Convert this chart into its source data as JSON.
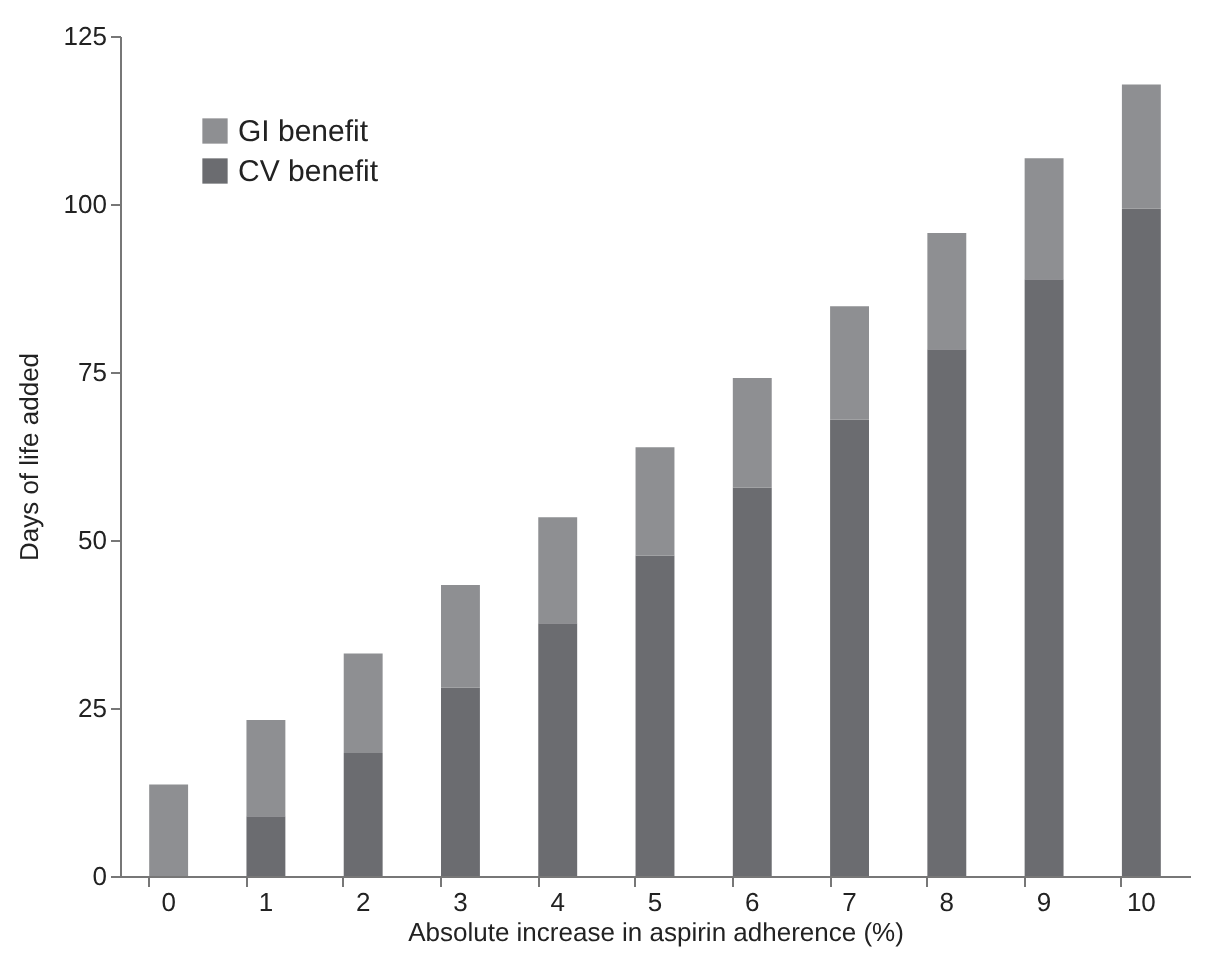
{
  "chart_data": {
    "type": "bar",
    "stacked": true,
    "xlabel": "Absolute increase in aspirin adherence (%)",
    "ylabel": "Days of life added",
    "categories": [
      "0",
      "1",
      "2",
      "3",
      "4",
      "5",
      "6",
      "7",
      "8",
      "9",
      "10"
    ],
    "series": [
      {
        "name": "CV benefit",
        "color": "#6b6c70",
        "values": [
          0,
          8.9,
          18.3,
          28,
          37.6,
          47.7,
          57.8,
          67.9,
          78.4,
          88.8,
          99.3
        ]
      },
      {
        "name": "GI benefit",
        "color": "#8e8f92",
        "values": [
          13.6,
          14.3,
          14.8,
          15.3,
          15.8,
          16.1,
          16.3,
          16.9,
          17.3,
          18,
          18.5
        ]
      }
    ],
    "ylim": [
      0,
      125
    ],
    "yticks": [
      0,
      25,
      50,
      75,
      100,
      125
    ],
    "grid": false,
    "legend": "top left"
  }
}
